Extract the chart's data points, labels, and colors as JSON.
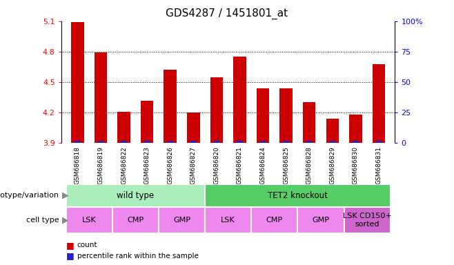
{
  "title": "GDS4287 / 1451801_at",
  "samples": [
    "GSM686818",
    "GSM686819",
    "GSM686822",
    "GSM686823",
    "GSM686826",
    "GSM686827",
    "GSM686820",
    "GSM686821",
    "GSM686824",
    "GSM686825",
    "GSM686828",
    "GSM686829",
    "GSM686830",
    "GSM686831"
  ],
  "red_values": [
    5.09,
    4.79,
    4.21,
    4.32,
    4.62,
    4.2,
    4.55,
    4.75,
    4.44,
    4.44,
    4.3,
    4.14,
    4.18,
    4.68
  ],
  "y_min": 3.9,
  "y_max": 5.1,
  "y_ticks": [
    3.9,
    4.2,
    4.5,
    4.8,
    5.1
  ],
  "y_ticks_labels": [
    "3.9",
    "4.2",
    "4.5",
    "4.8",
    "5.1"
  ],
  "y2_ticks_labels": [
    "0",
    "25",
    "50",
    "75",
    "100%"
  ],
  "bar_color_red": "#cc0000",
  "bar_color_blue": "#2222cc",
  "genotype_groups": [
    {
      "label": "wild type",
      "start": 0,
      "end": 6,
      "color": "#aaeebb"
    },
    {
      "label": "TET2 knockout",
      "start": 6,
      "end": 14,
      "color": "#55cc66"
    }
  ],
  "cell_type_groups": [
    {
      "label": "LSK",
      "start": 0,
      "end": 2,
      "color": "#ee88ee"
    },
    {
      "label": "CMP",
      "start": 2,
      "end": 4,
      "color": "#ee88ee"
    },
    {
      "label": "GMP",
      "start": 4,
      "end": 6,
      "color": "#ee88ee"
    },
    {
      "label": "LSK",
      "start": 6,
      "end": 8,
      "color": "#ee88ee"
    },
    {
      "label": "CMP",
      "start": 8,
      "end": 10,
      "color": "#ee88ee"
    },
    {
      "label": "GMP",
      "start": 10,
      "end": 12,
      "color": "#ee88ee"
    },
    {
      "label": "LSK CD150+\nsorted",
      "start": 12,
      "end": 14,
      "color": "#cc66cc"
    }
  ],
  "legend_count_color": "#cc0000",
  "legend_pct_color": "#2222cc",
  "xlabel_genotype": "genotype/variation",
  "xlabel_celltype": "cell type",
  "ticklabel_bg": "#cccccc",
  "bar_width": 0.55
}
